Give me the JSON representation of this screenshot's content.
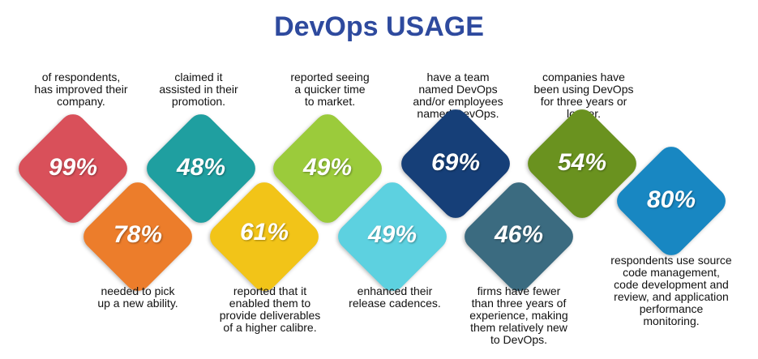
{
  "title": "DevOps USAGE",
  "stats": [
    {
      "value": "99%",
      "color": "#d9505a",
      "caption": "of respondents,\nhas improved their\ncompany."
    },
    {
      "value": "78%",
      "color": "#ec7d2b",
      "caption": "needed to pick\nup a new ability."
    },
    {
      "value": "48%",
      "color": "#1f9fa0",
      "caption": "claimed it\nassisted in their\npromotion."
    },
    {
      "value": "61%",
      "color": "#f2c418",
      "caption": "reported that it\nenabled them to\nprovide deliverables\nof a higher calibre."
    },
    {
      "value": "49%",
      "color": "#9bcb3b",
      "caption": "reported seeing\na quicker time\nto market."
    },
    {
      "value": "49%",
      "color": "#5dd1e0",
      "caption": "enhanced their\nrelease cadences."
    },
    {
      "value": "69%",
      "color": "#163f78",
      "caption": "have a team\nnamed DevOps\nand/or employees\nnamed DevOps."
    },
    {
      "value": "46%",
      "color": "#3b6b80",
      "caption": "firms have fewer\nthan three years of\nexperience, making\nthem relatively new\nto DevOps."
    },
    {
      "value": "54%",
      "color": "#6a921f",
      "caption": "companies have\nbeen using DevOps\nfor three years or\nlonger."
    },
    {
      "value": "80%",
      "color": "#1887c2",
      "caption": "respondents use source\ncode management,\ncode development and\nreview, and application\nperformance\nmonitoring."
    }
  ]
}
